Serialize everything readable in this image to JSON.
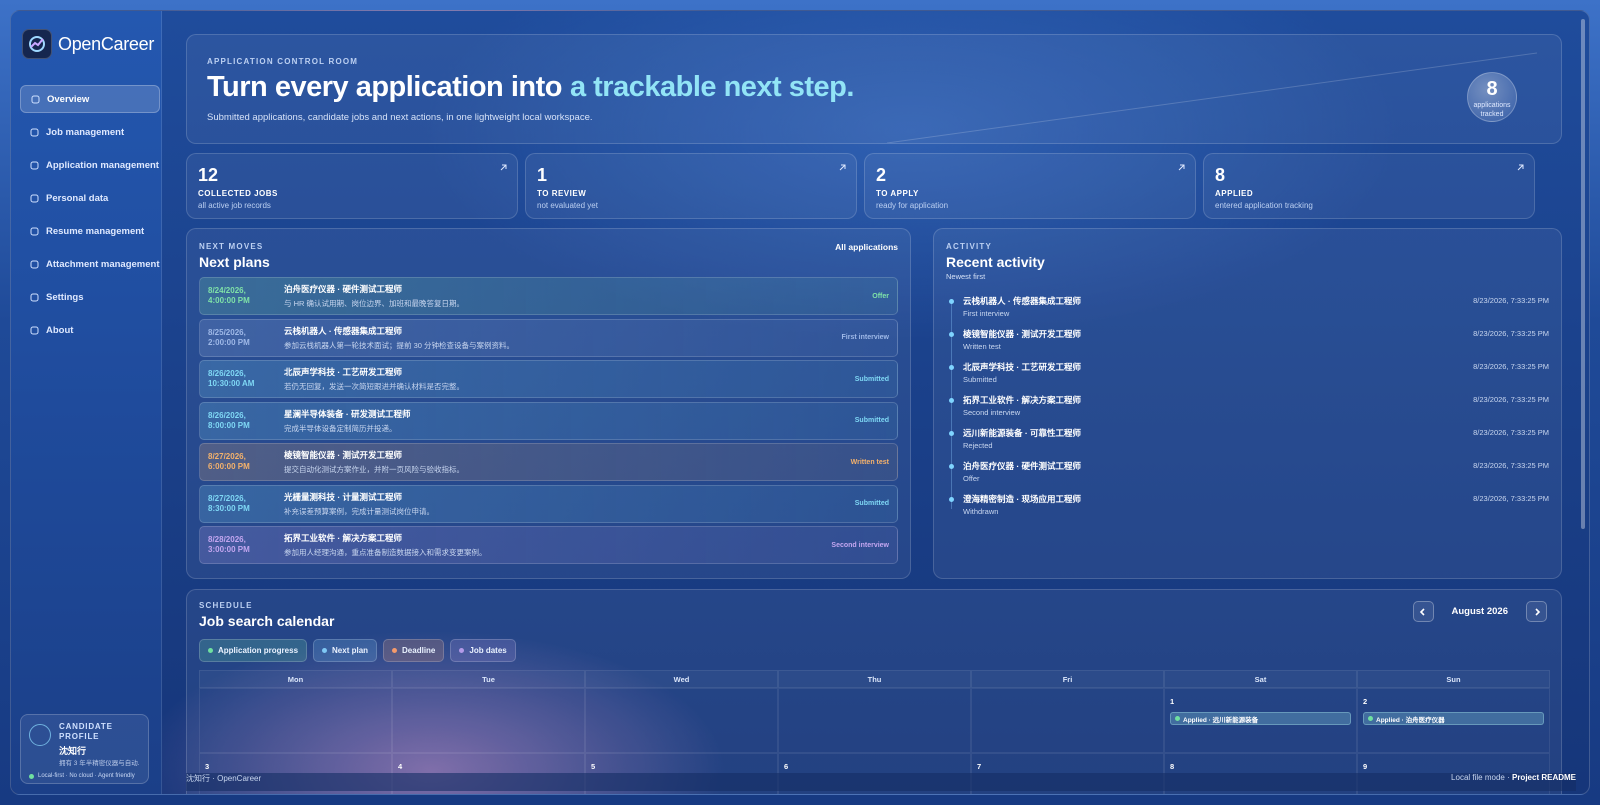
{
  "brand": {
    "name": "OpenCareer"
  },
  "nav": [
    "Overview",
    "Job management",
    "Application management",
    "Personal data",
    "Resume management",
    "Attachment management",
    "Settings",
    "About"
  ],
  "profile": {
    "heading": "CANDIDATE PROFILE",
    "name": "沈知行",
    "summary": "拥有 3 年半精密仪器与自动...",
    "tags": "Local-first · No cloud · Agent friendly"
  },
  "hero": {
    "eyebrow": "APPLICATION CONTROL ROOM",
    "title": "Turn every application into",
    "title_highlight": "a trackable next step.",
    "subtitle": "Submitted applications, candidate jobs and next actions, in one lightweight local workspace.",
    "count": 8,
    "count_label": "applications tracked"
  },
  "stats": [
    {
      "value": 12,
      "label": "COLLECTED JOBS",
      "note": "all active job records"
    },
    {
      "value": 1,
      "label": "TO REVIEW",
      "note": "not evaluated yet"
    },
    {
      "value": 2,
      "label": "TO APPLY",
      "note": "ready for application"
    },
    {
      "value": 8,
      "label": "APPLIED",
      "note": "entered application tracking"
    }
  ],
  "plans": {
    "eyebrow": "NEXT MOVES",
    "title": "Next plans",
    "link": "All applications",
    "items": [
      {
        "when": "8/24/2026, 4:00:00 PM",
        "title": "泊舟医疗仪器 · 硬件测试工程师",
        "detail": "与 HR 确认试用期、岗位边界、加班和最晚答复日期。",
        "status": "Offer",
        "color": "#7fe3a8"
      },
      {
        "when": "8/25/2026, 2:00:00 PM",
        "title": "云栈机器人 · 传感器集成工程师",
        "detail": "参加云栈机器人第一轮技术面试；提前 30 分钟检查设备与案例资料。",
        "status": "First interview",
        "color": "#9fb9e8"
      },
      {
        "when": "8/26/2026, 10:30:00 AM",
        "title": "北辰声学科技 · 工艺研发工程师",
        "detail": "若仍无回复，发送一次简短跟进并确认材料是否完整。",
        "status": "Submitted",
        "color": "#7fd8f5"
      },
      {
        "when": "8/26/2026, 8:00:00 PM",
        "title": "星澜半导体装备 · 研发测试工程师",
        "detail": "完成半导体设备定制简历并投递。",
        "status": "Submitted",
        "color": "#7fd8f5"
      },
      {
        "when": "8/27/2026, 6:00:00 PM",
        "title": "棱镜智能仪器 · 测试开发工程师",
        "detail": "提交自动化测试方案作业，并附一页风险与验收指标。",
        "status": "Written test",
        "color": "#f5b26b"
      },
      {
        "when": "8/27/2026, 8:30:00 PM",
        "title": "光栅量测科技 · 计量测试工程师",
        "detail": "补充误差预算案例，完成计量测试岗位申请。",
        "status": "Submitted",
        "color": "#7fd8f5"
      },
      {
        "when": "8/28/2026, 3:00:00 PM",
        "title": "拓界工业软件 · 解决方案工程师",
        "detail": "参加用人经理沟通，重点准备制造数据接入和需求变更案例。",
        "status": "Second interview",
        "color": "#c3a6f0"
      }
    ]
  },
  "activity": {
    "eyebrow": "ACTIVITY",
    "title": "Recent activity",
    "subtitle": "Newest first",
    "items": [
      {
        "title": "云栈机器人 · 传感器集成工程师",
        "status": "First interview",
        "time": "8/23/2026, 7:33:25 PM"
      },
      {
        "title": "棱镜智能仪器 · 测试开发工程师",
        "status": "Written test",
        "time": "8/23/2026, 7:33:25 PM"
      },
      {
        "title": "北辰声学科技 · 工艺研发工程师",
        "status": "Submitted",
        "time": "8/23/2026, 7:33:25 PM"
      },
      {
        "title": "拓界工业软件 · 解决方案工程师",
        "status": "Second interview",
        "time": "8/23/2026, 7:33:25 PM"
      },
      {
        "title": "远川新能源装备 · 可靠性工程师",
        "status": "Rejected",
        "time": "8/23/2026, 7:33:25 PM"
      },
      {
        "title": "泊舟医疗仪器 · 硬件测试工程师",
        "status": "Offer",
        "time": "8/23/2026, 7:33:25 PM"
      },
      {
        "title": "澄海精密制造 · 现场应用工程师",
        "status": "Withdrawn",
        "time": "8/23/2026, 7:33:25 PM"
      }
    ]
  },
  "calendar": {
    "eyebrow": "SCHEDULE",
    "title": "Job search calendar",
    "month": "August 2026",
    "legend": [
      {
        "label": "Application progress",
        "color": "#6fe0a0"
      },
      {
        "label": "Next plan",
        "color": "#7fc8f5"
      },
      {
        "label": "Deadline",
        "color": "#f59a6b"
      },
      {
        "label": "Job dates",
        "color": "#b39ae8"
      }
    ],
    "weekdays": [
      "Mon",
      "Tue",
      "Wed",
      "Thu",
      "Fri",
      "Sat",
      "Sun"
    ],
    "weeks": [
      [
        null,
        null,
        null,
        null,
        null,
        {
          "day": 1,
          "events": [
            {
              "text": "Applied · 远川新能源装备",
              "color": "#6fe0a0"
            }
          ]
        },
        {
          "day": 2,
          "events": [
            {
              "text": "Applied · 泊舟医疗仪器",
              "color": "#6fe0a0"
            }
          ]
        }
      ],
      [
        {
          "day": 3,
          "events": []
        },
        {
          "day": 4,
          "events": []
        },
        {
          "day": 5,
          "events": []
        },
        {
          "day": 6,
          "events": []
        },
        {
          "day": 7,
          "events": []
        },
        {
          "day": 8,
          "events": []
        },
        {
          "day": 9,
          "events": []
        }
      ]
    ]
  },
  "footer": {
    "left": "沈知行 · OpenCareer",
    "mode": "Local file mode ·",
    "link": "Project README"
  }
}
